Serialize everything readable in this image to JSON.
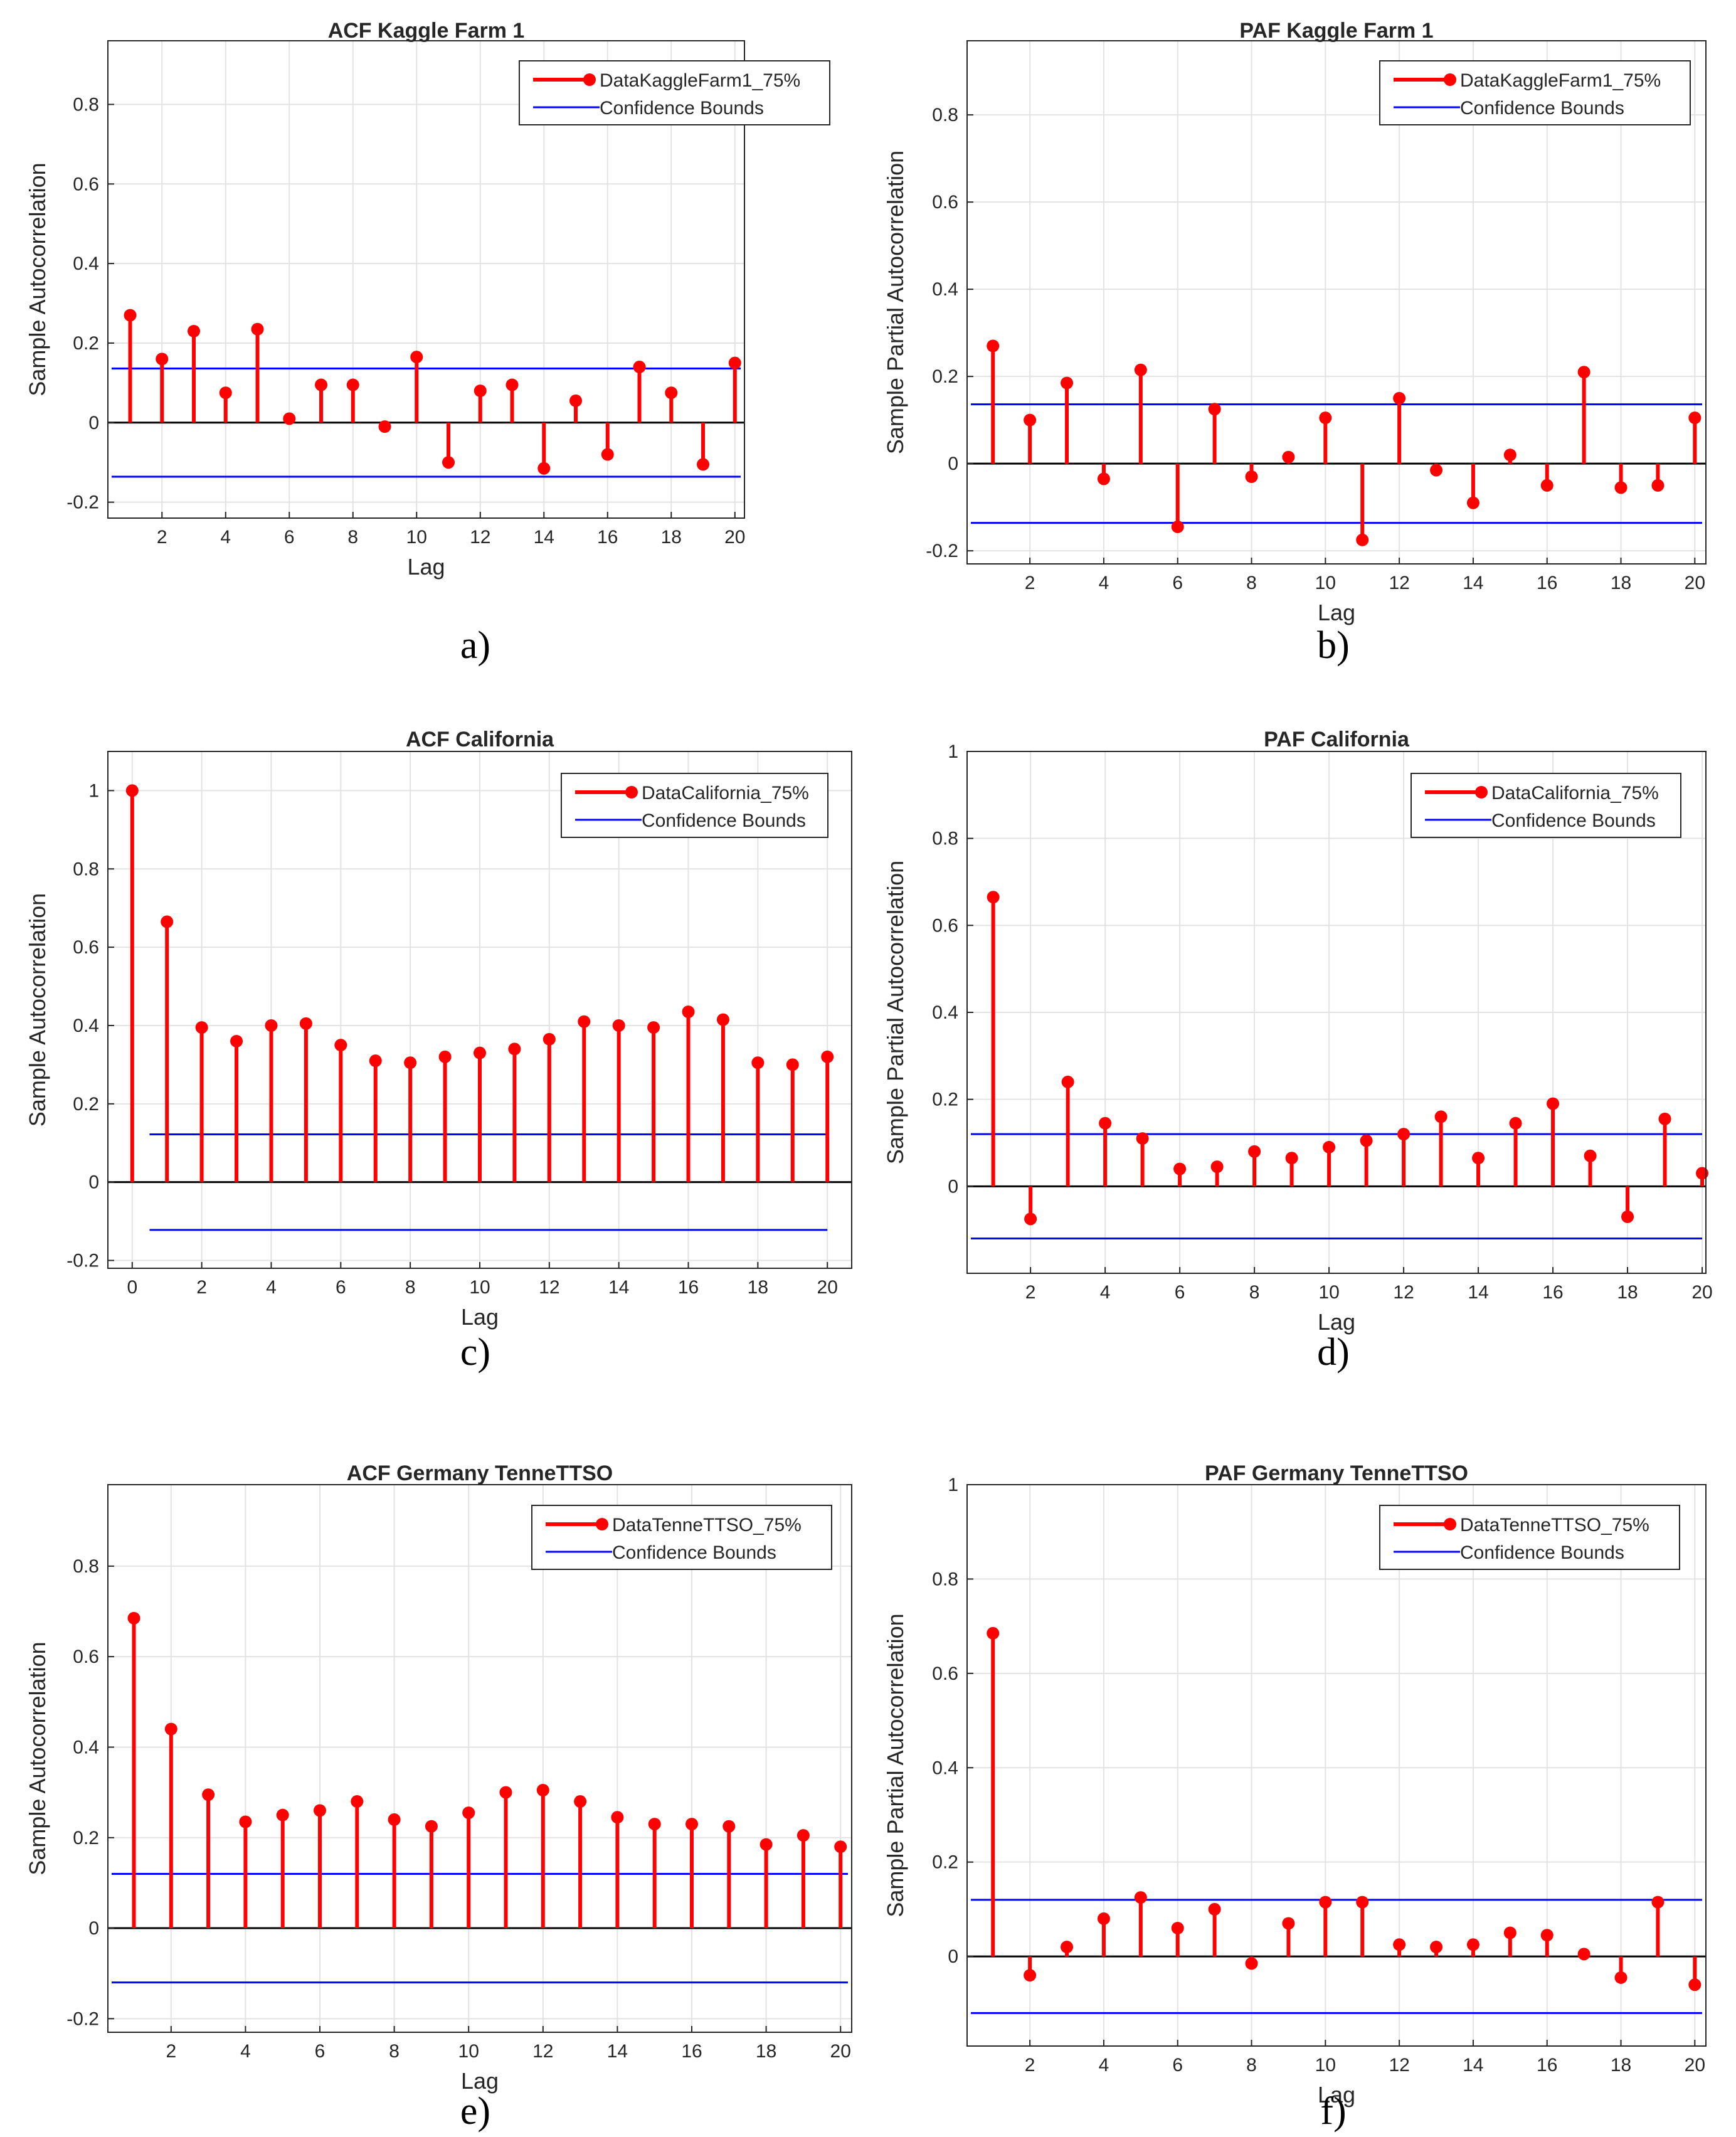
{
  "chart_data": [
    {
      "id": "a",
      "type": "stem",
      "title": "ACF Kaggle Farm 1",
      "xlabel": "Lag",
      "ylabel": "Sample Autocorrelation",
      "panel_label": "a)",
      "xlim": [
        0.3,
        20.3
      ],
      "ylim": [
        -0.24,
        0.96
      ],
      "xticks": [
        2,
        4,
        6,
        8,
        10,
        12,
        14,
        16,
        18,
        20
      ],
      "yticks": [
        -0.2,
        0,
        0.2,
        0.4,
        0.6,
        0.8
      ],
      "ytick_labels": [
        "-0.2",
        "0",
        "0.2",
        "0.4",
        "0.6",
        "0.8"
      ],
      "lags": [
        1,
        2,
        3,
        4,
        5,
        6,
        7,
        8,
        9,
        10,
        11,
        12,
        13,
        14,
        15,
        16,
        17,
        18,
        19,
        20
      ],
      "values": [
        0.27,
        0.16,
        0.23,
        0.075,
        0.235,
        0.01,
        0.095,
        0.095,
        -0.01,
        0.165,
        -0.1,
        0.08,
        0.095,
        -0.115,
        0.055,
        -0.08,
        0.14,
        0.075,
        -0.105,
        0.15
      ],
      "confidence_bound": 0.136,
      "legend": {
        "series": "DataKaggleFarm1_75%",
        "bounds": "Confidence Bounds"
      },
      "colors": {
        "stem": "#ff0000",
        "bounds": "#0000ff"
      }
    },
    {
      "id": "b",
      "type": "stem",
      "title": "PAF Kaggle Farm 1",
      "xlabel": "Lag",
      "ylabel": "Sample Partial Autocorrelation",
      "panel_label": "b)",
      "xlim": [
        0.3,
        20.3
      ],
      "ylim": [
        -0.23,
        0.97
      ],
      "xticks": [
        2,
        4,
        6,
        8,
        10,
        12,
        14,
        16,
        18,
        20
      ],
      "yticks": [
        -0.2,
        0,
        0.2,
        0.4,
        0.6,
        0.8
      ],
      "ytick_labels": [
        "-0.2",
        "0",
        "0.2",
        "0.4",
        "0.6",
        "0.8"
      ],
      "lags": [
        1,
        2,
        3,
        4,
        5,
        6,
        7,
        8,
        9,
        10,
        11,
        12,
        13,
        14,
        15,
        16,
        17,
        18,
        19,
        20
      ],
      "values": [
        0.27,
        0.1,
        0.185,
        -0.035,
        0.215,
        -0.145,
        0.125,
        -0.03,
        0.015,
        0.105,
        -0.175,
        0.15,
        -0.015,
        -0.09,
        0.02,
        -0.05,
        0.21,
        -0.055,
        -0.05,
        0.105
      ],
      "confidence_bound": 0.136,
      "legend": {
        "series": "DataKaggleFarm1_75%",
        "bounds": "Confidence Bounds"
      },
      "colors": {
        "stem": "#ff0000",
        "bounds": "#0000ff"
      }
    },
    {
      "id": "c",
      "type": "stem",
      "title": "ACF California",
      "xlabel": "Lag",
      "ylabel": "Sample Autocorrelation",
      "panel_label": "c)",
      "xlim": [
        -0.7,
        20.7
      ],
      "ylim": [
        -0.22,
        1.1
      ],
      "xticks": [
        0,
        2,
        4,
        6,
        8,
        10,
        12,
        14,
        16,
        18,
        20
      ],
      "yticks": [
        -0.2,
        0,
        0.2,
        0.4,
        0.6,
        0.8,
        1
      ],
      "ytick_labels": [
        "-0.2",
        "0",
        "0.2",
        "0.4",
        "0.6",
        "0.8",
        "1"
      ],
      "lags": [
        0,
        1,
        2,
        3,
        4,
        5,
        6,
        7,
        8,
        9,
        10,
        11,
        12,
        13,
        14,
        15,
        16,
        17,
        18,
        19,
        20
      ],
      "values": [
        1.0,
        0.665,
        0.395,
        0.36,
        0.4,
        0.405,
        0.35,
        0.31,
        0.305,
        0.32,
        0.33,
        0.34,
        0.365,
        0.41,
        0.4,
        0.395,
        0.435,
        0.415,
        0.305,
        0.3,
        0.32
      ],
      "confidence_bound": 0.122,
      "confidence_x": [
        0.5,
        20
      ],
      "legend": {
        "series": "DataCalifornia_75%",
        "bounds": "Confidence Bounds"
      },
      "colors": {
        "stem": "#ff0000",
        "bounds": "#0000ff"
      }
    },
    {
      "id": "d",
      "type": "stem",
      "title": "PAF California",
      "xlabel": "Lag",
      "ylabel": "Sample Partial Autocorrelation",
      "panel_label": "d)",
      "xlim": [
        0.3,
        20.1
      ],
      "ylim": [
        -0.2,
        1.0
      ],
      "xticks": [
        2,
        4,
        6,
        8,
        10,
        12,
        14,
        16,
        18,
        20
      ],
      "yticks": [
        0,
        0.2,
        0.4,
        0.6,
        0.8,
        1
      ],
      "ytick_labels": [
        "0",
        "0.2",
        "0.4",
        "0.6",
        "0.8",
        "1"
      ],
      "lags": [
        1,
        2,
        3,
        4,
        5,
        6,
        7,
        8,
        9,
        10,
        11,
        12,
        13,
        14,
        15,
        16,
        17,
        18,
        19,
        20
      ],
      "values": [
        0.665,
        -0.075,
        0.24,
        0.145,
        0.11,
        0.04,
        0.045,
        0.08,
        0.065,
        0.09,
        0.105,
        0.12,
        0.16,
        0.065,
        0.145,
        0.19,
        0.07,
        -0.07,
        0.155,
        0.03
      ],
      "confidence_bound": 0.12,
      "legend": {
        "series": "DataCalifornia_75%",
        "bounds": "Confidence Bounds"
      },
      "colors": {
        "stem": "#ff0000",
        "bounds": "#0000ff"
      }
    },
    {
      "id": "e",
      "type": "stem",
      "title": "ACF Germany TenneTTSO",
      "xlabel": "Lag",
      "ylabel": "Sample Autocorrelation",
      "panel_label": "e)",
      "xlim": [
        0.3,
        20.3
      ],
      "ylim": [
        -0.23,
        0.98
      ],
      "xticks": [
        2,
        4,
        6,
        8,
        10,
        12,
        14,
        16,
        18,
        20
      ],
      "yticks": [
        -0.2,
        0,
        0.2,
        0.4,
        0.6,
        0.8
      ],
      "ytick_labels": [
        "-0.2",
        "0",
        "0.2",
        "0.4",
        "0.6",
        "0.8"
      ],
      "lags": [
        1,
        2,
        3,
        4,
        5,
        6,
        7,
        8,
        9,
        10,
        11,
        12,
        13,
        14,
        15,
        16,
        17,
        18,
        19,
        20
      ],
      "values": [
        0.685,
        0.44,
        0.295,
        0.235,
        0.25,
        0.26,
        0.28,
        0.24,
        0.225,
        0.255,
        0.3,
        0.305,
        0.28,
        0.245,
        0.23,
        0.23,
        0.225,
        0.185,
        0.205,
        0.18
      ],
      "confidence_bound": 0.12,
      "legend": {
        "series": "DataTenneTTSO_75%",
        "bounds": "Confidence Bounds"
      },
      "colors": {
        "stem": "#ff0000",
        "bounds": "#0000ff"
      }
    },
    {
      "id": "f",
      "type": "stem",
      "title": "PAF Germany TenneTTSO",
      "xlabel": "Lag",
      "ylabel": "Sample Partial Autocorrelation",
      "panel_label": "f)",
      "xlim": [
        0.3,
        20.3
      ],
      "ylim": [
        -0.19,
        1.0
      ],
      "xticks": [
        2,
        4,
        6,
        8,
        10,
        12,
        14,
        16,
        18,
        20
      ],
      "yticks": [
        0,
        0.2,
        0.4,
        0.6,
        0.8,
        1
      ],
      "ytick_labels": [
        "0",
        "0.2",
        "0.4",
        "0.6",
        "0.8",
        "1"
      ],
      "lags": [
        1,
        2,
        3,
        4,
        5,
        6,
        7,
        8,
        9,
        10,
        11,
        12,
        13,
        14,
        15,
        16,
        17,
        18,
        19,
        20
      ],
      "values": [
        0.685,
        -0.04,
        0.02,
        0.08,
        0.125,
        0.06,
        0.1,
        -0.015,
        0.07,
        0.115,
        0.115,
        0.025,
        0.02,
        0.025,
        0.05,
        0.045,
        0.005,
        -0.045,
        0.115,
        -0.06
      ],
      "confidence_bound": 0.12,
      "legend": {
        "series": "DataTenneTTSO_75%",
        "bounds": "Confidence Bounds"
      },
      "colors": {
        "stem": "#ff0000",
        "bounds": "#0000ff"
      }
    }
  ]
}
